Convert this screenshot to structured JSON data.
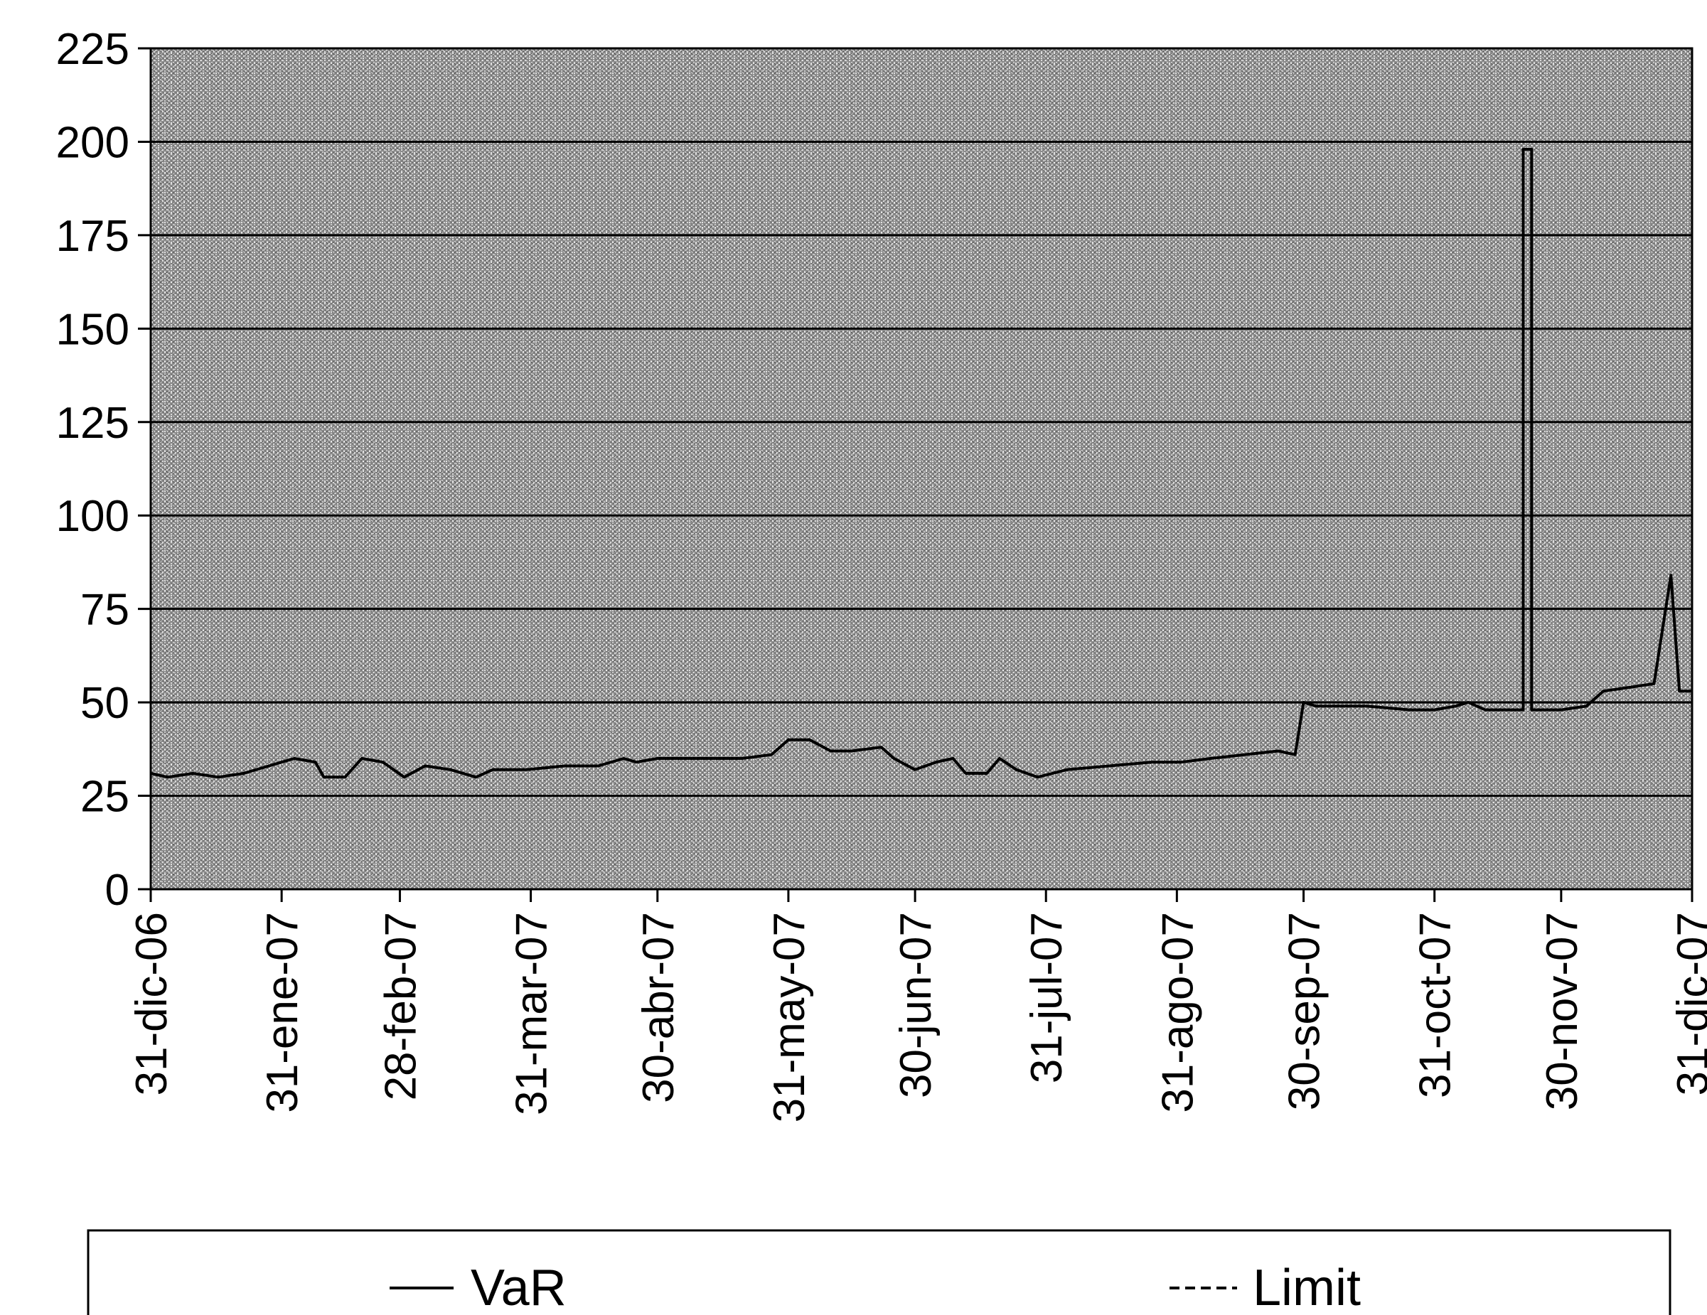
{
  "chart_data": {
    "type": "line",
    "title": "",
    "xlabel": "",
    "ylabel": "",
    "ylim": [
      0,
      225
    ],
    "yticks": [
      0,
      25,
      50,
      75,
      100,
      125,
      150,
      175,
      200,
      225
    ],
    "xlim": [
      "2006-12-31",
      "2007-12-31"
    ],
    "xticks": [
      {
        "date": "2006-12-31",
        "label": "31-dic-06"
      },
      {
        "date": "2007-01-31",
        "label": "31-ene-07"
      },
      {
        "date": "2007-02-28",
        "label": "28-feb-07"
      },
      {
        "date": "2007-03-31",
        "label": "31-mar-07"
      },
      {
        "date": "2007-04-30",
        "label": "30-abr-07"
      },
      {
        "date": "2007-05-31",
        "label": "31-may-07"
      },
      {
        "date": "2007-06-30",
        "label": "30-jun-07"
      },
      {
        "date": "2007-07-31",
        "label": "31-jul-07"
      },
      {
        "date": "2007-08-31",
        "label": "31-ago-07"
      },
      {
        "date": "2007-09-30",
        "label": "30-sep-07"
      },
      {
        "date": "2007-10-31",
        "label": "31-oct-07"
      },
      {
        "date": "2007-11-30",
        "label": "30-nov-07"
      },
      {
        "date": "2007-12-31",
        "label": "31-dic-07"
      }
    ],
    "grid": true,
    "legend_position": "bottom",
    "colors": {
      "background": "#9a9a9a",
      "series": "#000000",
      "grid": "#000000"
    },
    "series": [
      {
        "name": "VaR",
        "style": "solid",
        "points": [
          [
            "2006-12-31",
            31
          ],
          [
            "2007-01-04",
            30
          ],
          [
            "2007-01-10",
            31
          ],
          [
            "2007-01-16",
            30
          ],
          [
            "2007-01-22",
            31
          ],
          [
            "2007-01-28",
            33
          ],
          [
            "2007-02-03",
            35
          ],
          [
            "2007-02-08",
            34
          ],
          [
            "2007-02-10",
            30
          ],
          [
            "2007-02-15",
            30
          ],
          [
            "2007-02-19",
            35
          ],
          [
            "2007-02-24",
            34
          ],
          [
            "2007-03-01",
            30
          ],
          [
            "2007-03-06",
            33
          ],
          [
            "2007-03-12",
            32
          ],
          [
            "2007-03-18",
            30
          ],
          [
            "2007-03-22",
            32
          ],
          [
            "2007-03-30",
            32
          ],
          [
            "2007-04-08",
            33
          ],
          [
            "2007-04-16",
            33
          ],
          [
            "2007-04-22",
            35
          ],
          [
            "2007-04-25",
            34
          ],
          [
            "2007-04-30",
            35
          ],
          [
            "2007-05-10",
            35
          ],
          [
            "2007-05-20",
            35
          ],
          [
            "2007-05-27",
            36
          ],
          [
            "2007-05-31",
            40
          ],
          [
            "2007-06-05",
            40
          ],
          [
            "2007-06-10",
            37
          ],
          [
            "2007-06-15",
            37
          ],
          [
            "2007-06-22",
            38
          ],
          [
            "2007-06-25",
            35
          ],
          [
            "2007-06-30",
            32
          ],
          [
            "2007-07-05",
            34
          ],
          [
            "2007-07-09",
            35
          ],
          [
            "2007-07-12",
            31
          ],
          [
            "2007-07-17",
            31
          ],
          [
            "2007-07-20",
            35
          ],
          [
            "2007-07-24",
            32
          ],
          [
            "2007-07-29",
            30
          ],
          [
            "2007-08-05",
            32
          ],
          [
            "2007-08-15",
            33
          ],
          [
            "2007-08-25",
            34
          ],
          [
            "2007-09-01",
            34
          ],
          [
            "2007-09-08",
            35
          ],
          [
            "2007-09-16",
            36
          ],
          [
            "2007-09-24",
            37
          ],
          [
            "2007-09-28",
            36
          ],
          [
            "2007-09-30",
            50
          ],
          [
            "2007-10-03",
            49
          ],
          [
            "2007-10-15",
            49
          ],
          [
            "2007-10-25",
            48
          ],
          [
            "2007-10-31",
            48
          ],
          [
            "2007-11-05",
            49
          ],
          [
            "2007-11-08",
            50
          ],
          [
            "2007-11-12",
            48
          ],
          [
            "2007-11-21",
            48
          ],
          [
            "2007-11-21",
            198
          ],
          [
            "2007-11-23",
            198
          ],
          [
            "2007-11-23",
            48
          ],
          [
            "2007-11-30",
            48
          ],
          [
            "2007-12-06",
            49
          ],
          [
            "2007-12-10",
            53
          ],
          [
            "2007-12-16",
            54
          ],
          [
            "2007-12-22",
            55
          ],
          [
            "2007-12-26",
            84
          ],
          [
            "2007-12-28",
            53
          ],
          [
            "2007-12-31",
            53
          ]
        ]
      },
      {
        "name": "Limit",
        "style": "dashed",
        "points": []
      }
    ]
  }
}
